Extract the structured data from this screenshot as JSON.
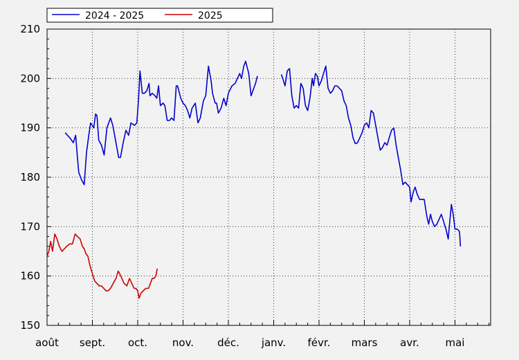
{
  "chart_data": {
    "type": "line",
    "title": "",
    "xlabel": "",
    "ylabel": "",
    "ylim": [
      150,
      210
    ],
    "xlim": [
      0,
      10.0
    ],
    "grid": true,
    "legend_position": "top-left",
    "y_ticks": [
      150,
      160,
      170,
      180,
      190,
      200,
      210
    ],
    "x_month_labels": [
      "août",
      "sept.",
      "oct.",
      "nov.",
      "déc.",
      "janv.",
      "févr.",
      "mars",
      "avr.",
      "mai"
    ],
    "x_unit": "months since start of août",
    "series": [
      {
        "name": "2024 - 2025",
        "color": "#0000cc",
        "points": [
          [
            0.4,
            189.0
          ],
          [
            0.5,
            188.0
          ],
          [
            0.58,
            187.0
          ],
          [
            0.63,
            188.5
          ],
          [
            0.67,
            184.0
          ],
          [
            0.7,
            181.0
          ],
          [
            0.76,
            179.5
          ],
          [
            0.82,
            178.5
          ],
          [
            0.87,
            185.0
          ],
          [
            0.92,
            188.5
          ],
          [
            0.96,
            191.0
          ],
          [
            1.03,
            190.0
          ],
          [
            1.07,
            192.8
          ],
          [
            1.1,
            192.5
          ],
          [
            1.14,
            187.5
          ],
          [
            1.2,
            186.5
          ],
          [
            1.26,
            184.5
          ],
          [
            1.32,
            190.0
          ],
          [
            1.4,
            192.0
          ],
          [
            1.45,
            190.5
          ],
          [
            1.52,
            187.0
          ],
          [
            1.58,
            184.0
          ],
          [
            1.62,
            184.0
          ],
          [
            1.68,
            187.0
          ],
          [
            1.74,
            189.5
          ],
          [
            1.8,
            188.5
          ],
          [
            1.85,
            191.0
          ],
          [
            1.93,
            190.5
          ],
          [
            1.98,
            191.0
          ],
          [
            2.02,
            196.0
          ],
          [
            2.05,
            201.5
          ],
          [
            2.1,
            197.0
          ],
          [
            2.15,
            197.0
          ],
          [
            2.2,
            197.5
          ],
          [
            2.25,
            199.0
          ],
          [
            2.27,
            196.5
          ],
          [
            2.32,
            197.0
          ],
          [
            2.38,
            196.5
          ],
          [
            2.42,
            196.0
          ],
          [
            2.46,
            198.5
          ],
          [
            2.5,
            194.5
          ],
          [
            2.56,
            195.0
          ],
          [
            2.6,
            194.5
          ],
          [
            2.65,
            191.5
          ],
          [
            2.7,
            191.5
          ],
          [
            2.75,
            192.0
          ],
          [
            2.8,
            191.5
          ],
          [
            2.85,
            198.5
          ],
          [
            2.88,
            198.5
          ],
          [
            2.95,
            196.0
          ],
          [
            3.0,
            195.0
          ],
          [
            3.05,
            194.5
          ],
          [
            3.1,
            193.5
          ],
          [
            3.15,
            192.0
          ],
          [
            3.2,
            194.0
          ],
          [
            3.27,
            195.0
          ],
          [
            3.33,
            191.0
          ],
          [
            3.38,
            192.0
          ],
          [
            3.45,
            195.5
          ],
          [
            3.5,
            196.5
          ],
          [
            3.56,
            202.5
          ],
          [
            3.62,
            199.5
          ],
          [
            3.65,
            197.0
          ],
          [
            3.68,
            196.0
          ],
          [
            3.71,
            195.0
          ],
          [
            3.74,
            195.0
          ],
          [
            3.78,
            193.0
          ],
          [
            3.84,
            194.0
          ],
          [
            3.9,
            196.0
          ],
          [
            3.95,
            194.5
          ],
          [
            4.0,
            197.0
          ],
          [
            4.08,
            198.5
          ],
          [
            4.15,
            199.0
          ],
          [
            4.2,
            200.0
          ],
          [
            4.25,
            201.0
          ],
          [
            4.29,
            200.0
          ],
          [
            4.34,
            202.5
          ],
          [
            4.38,
            203.5
          ],
          [
            4.45,
            201.0
          ],
          [
            4.5,
            196.5
          ],
          [
            4.56,
            198.0
          ],
          [
            4.6,
            199.0
          ],
          [
            4.64,
            200.5
          ]
        ]
      },
      {
        "name": "2024 - 2025",
        "color": "#0000cc",
        "points": [
          [
            5.17,
            200.8
          ],
          [
            5.2,
            200.0
          ],
          [
            5.25,
            198.5
          ],
          [
            5.3,
            201.5
          ],
          [
            5.35,
            202.0
          ],
          [
            5.4,
            196.5
          ],
          [
            5.45,
            194.0
          ],
          [
            5.5,
            194.5
          ],
          [
            5.55,
            194.0
          ],
          [
            5.6,
            199.0
          ],
          [
            5.65,
            198.0
          ],
          [
            5.7,
            194.5
          ],
          [
            5.75,
            193.5
          ],
          [
            5.8,
            196.0
          ],
          [
            5.85,
            200.0
          ],
          [
            5.88,
            198.5
          ],
          [
            5.92,
            201.0
          ],
          [
            5.96,
            200.5
          ],
          [
            6.0,
            198.5
          ],
          [
            6.05,
            199.5
          ],
          [
            6.1,
            201.0
          ],
          [
            6.15,
            202.5
          ],
          [
            6.2,
            198.0
          ],
          [
            6.25,
            197.0
          ],
          [
            6.3,
            197.5
          ],
          [
            6.35,
            198.5
          ],
          [
            6.4,
            198.5
          ],
          [
            6.45,
            198.0
          ],
          [
            6.5,
            197.5
          ],
          [
            6.55,
            195.5
          ],
          [
            6.6,
            194.5
          ],
          [
            6.65,
            192.0
          ],
          [
            6.7,
            190.5
          ],
          [
            6.75,
            188.0
          ],
          [
            6.8,
            186.8
          ],
          [
            6.85,
            187.0
          ],
          [
            6.9,
            188.0
          ],
          [
            6.95,
            189.0
          ],
          [
            7.0,
            190.5
          ],
          [
            7.05,
            191.0
          ],
          [
            7.1,
            190.0
          ],
          [
            7.15,
            193.5
          ],
          [
            7.2,
            193.0
          ],
          [
            7.25,
            190.5
          ],
          [
            7.3,
            188.0
          ],
          [
            7.35,
            185.5
          ],
          [
            7.4,
            186.0
          ],
          [
            7.45,
            187.0
          ],
          [
            7.5,
            186.5
          ],
          [
            7.55,
            188.0
          ],
          [
            7.6,
            189.5
          ],
          [
            7.65,
            190.0
          ],
          [
            7.7,
            186.5
          ],
          [
            7.75,
            184.0
          ],
          [
            7.8,
            181.5
          ],
          [
            7.85,
            178.5
          ],
          [
            7.9,
            179.0
          ],
          [
            7.95,
            178.5
          ],
          [
            8.0,
            178.0
          ],
          [
            8.03,
            175.0
          ],
          [
            8.08,
            177.0
          ],
          [
            8.12,
            178.0
          ],
          [
            8.17,
            176.5
          ],
          [
            8.22,
            175.5
          ],
          [
            8.28,
            175.5
          ],
          [
            8.32,
            175.5
          ],
          [
            8.38,
            172.0
          ],
          [
            8.42,
            170.5
          ],
          [
            8.46,
            172.5
          ],
          [
            8.5,
            171.0
          ],
          [
            8.55,
            170.0
          ],
          [
            8.6,
            170.5
          ],
          [
            8.65,
            171.5
          ],
          [
            8.7,
            172.5
          ],
          [
            8.75,
            171.0
          ],
          [
            8.8,
            169.5
          ],
          [
            8.85,
            167.5
          ],
          [
            8.88,
            170.5
          ],
          [
            8.92,
            174.5
          ],
          [
            8.96,
            172.5
          ],
          [
            9.0,
            169.5
          ],
          [
            9.05,
            169.5
          ],
          [
            9.1,
            169.0
          ],
          [
            9.12,
            166.0
          ]
        ]
      },
      {
        "name": "2025",
        "color": "#cc0000",
        "points": [
          [
            0.0,
            164.0
          ],
          [
            0.04,
            165.0
          ],
          [
            0.08,
            167.0
          ],
          [
            0.12,
            165.0
          ],
          [
            0.17,
            168.5
          ],
          [
            0.22,
            167.5
          ],
          [
            0.27,
            166.0
          ],
          [
            0.33,
            165.0
          ],
          [
            0.38,
            165.5
          ],
          [
            0.43,
            166.0
          ],
          [
            0.5,
            166.5
          ],
          [
            0.56,
            166.5
          ],
          [
            0.62,
            168.5
          ],
          [
            0.67,
            168.0
          ],
          [
            0.73,
            167.5
          ],
          [
            0.78,
            166.0
          ],
          [
            0.82,
            165.5
          ],
          [
            0.86,
            164.5
          ],
          [
            0.9,
            164.0
          ],
          [
            0.95,
            162.0
          ],
          [
            1.0,
            160.5
          ],
          [
            1.05,
            159.0
          ],
          [
            1.1,
            158.5
          ],
          [
            1.15,
            158.0
          ],
          [
            1.2,
            158.0
          ],
          [
            1.25,
            157.5
          ],
          [
            1.3,
            157.0
          ],
          [
            1.35,
            157.0
          ],
          [
            1.4,
            157.5
          ],
          [
            1.46,
            158.5
          ],
          [
            1.52,
            159.5
          ],
          [
            1.57,
            161.0
          ],
          [
            1.6,
            160.5
          ],
          [
            1.65,
            159.5
          ],
          [
            1.7,
            158.5
          ],
          [
            1.76,
            158.0
          ],
          [
            1.82,
            159.5
          ],
          [
            1.87,
            158.5
          ],
          [
            1.92,
            157.5
          ],
          [
            1.96,
            157.5
          ],
          [
            2.0,
            157.0
          ],
          [
            2.03,
            155.5
          ],
          [
            2.07,
            156.5
          ],
          [
            2.12,
            157.0
          ],
          [
            2.18,
            157.5
          ],
          [
            2.24,
            157.5
          ],
          [
            2.28,
            158.5
          ],
          [
            2.32,
            159.5
          ],
          [
            2.36,
            159.5
          ],
          [
            2.4,
            160.0
          ],
          [
            2.43,
            161.5
          ]
        ]
      }
    ]
  }
}
